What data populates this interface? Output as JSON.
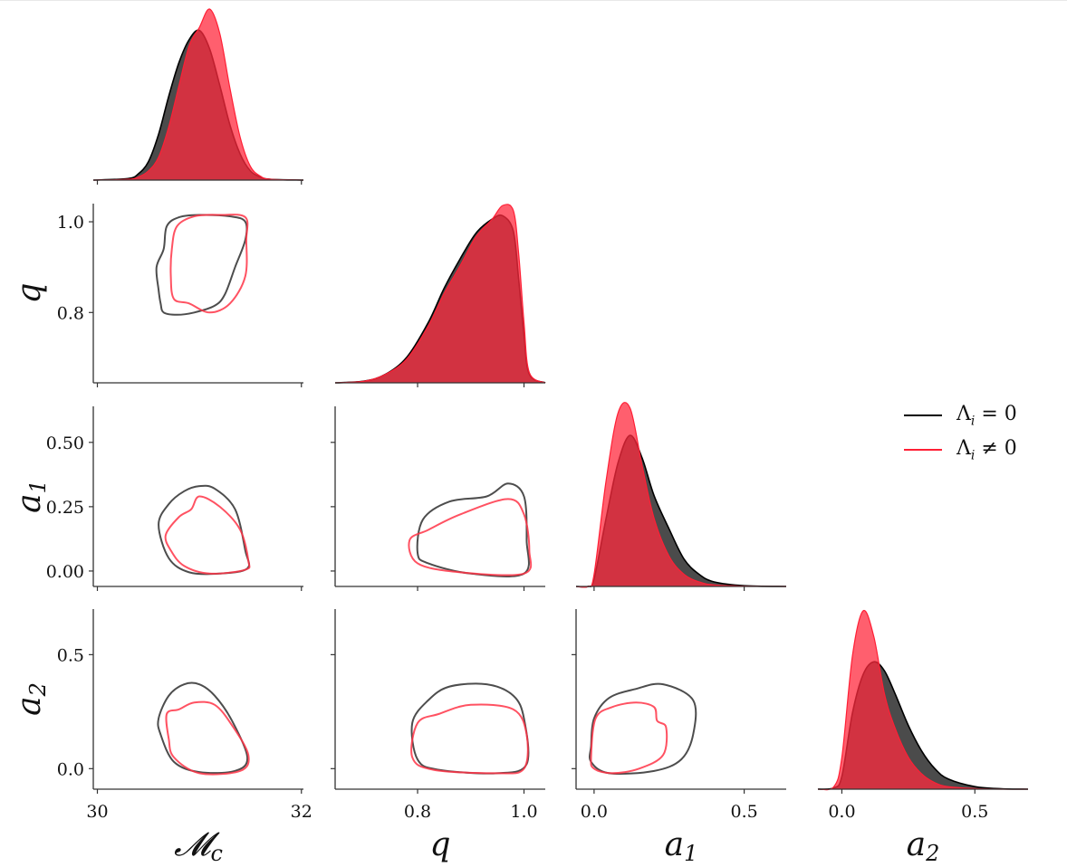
{
  "chart_data": {
    "type": "corner",
    "title": "",
    "parameters": [
      {
        "key": "Mc",
        "label": "𝓜c",
        "label_main": "𝓜",
        "label_sub": "c",
        "range": [
          29.96,
          32.02
        ],
        "ticks": [
          30,
          32
        ],
        "tick_labels": [
          "30",
          "32"
        ]
      },
      {
        "key": "q",
        "label": "q",
        "label_main": "q",
        "label_sub": "",
        "range": [
          0.645,
          1.04
        ],
        "ticks": [
          0.8,
          1.0
        ],
        "tick_labels": [
          "0.8",
          "1.0"
        ]
      },
      {
        "key": "a1",
        "label": "a1",
        "label_main": "a",
        "label_sub": "1",
        "range": [
          -0.06,
          0.64
        ],
        "ticks": [
          0.0,
          0.25,
          0.5
        ],
        "tick_labels": [
          "0.00",
          "0.25",
          "0.50"
        ],
        "x_tick_labels": [
          "0.0",
          "0.5"
        ],
        "x_ticks": [
          0.0,
          0.5
        ]
      },
      {
        "key": "a2",
        "label": "a2",
        "label_main": "a",
        "label_sub": "2",
        "range": [
          -0.09,
          0.7
        ],
        "ticks": [
          0.0,
          0.5
        ],
        "tick_labels": [
          "0.0",
          "0.5"
        ]
      }
    ],
    "series": [
      {
        "name": "Λi = 0",
        "color": "#000000",
        "fill": "#2b2b2b",
        "fill_opacity": 0.85
      },
      {
        "name": "Λi ≠ 0",
        "color": "#ff1f35",
        "fill": "#ff2a3d",
        "fill_opacity": 0.75
      }
    ],
    "marginals": {
      "Mc": {
        "x": [
          29.96,
          30.3,
          30.4,
          30.5,
          30.6,
          30.7,
          30.8,
          30.9,
          31.0,
          31.1,
          31.2,
          31.3,
          31.4,
          31.5,
          31.6,
          31.7,
          32.02
        ],
        "black": [
          0,
          0.01,
          0.04,
          0.12,
          0.3,
          0.55,
          0.77,
          0.92,
          0.98,
          0.86,
          0.62,
          0.36,
          0.17,
          0.06,
          0.02,
          0.005,
          0
        ],
        "red": [
          0,
          0.005,
          0.02,
          0.06,
          0.15,
          0.35,
          0.62,
          0.88,
          1.0,
          1.12,
          0.96,
          0.6,
          0.28,
          0.09,
          0.025,
          0.005,
          0
        ]
      },
      "q": {
        "x": [
          0.645,
          0.7,
          0.74,
          0.78,
          0.82,
          0.85,
          0.88,
          0.91,
          0.94,
          0.96,
          0.98,
          0.99,
          1.0,
          1.01,
          1.04
        ],
        "black": [
          0,
          0.01,
          0.05,
          0.15,
          0.35,
          0.55,
          0.72,
          0.87,
          0.95,
          0.97,
          0.88,
          0.6,
          0.28,
          0.05,
          0
        ],
        "red": [
          0,
          0.01,
          0.05,
          0.14,
          0.33,
          0.52,
          0.68,
          0.85,
          0.95,
          1.03,
          1.0,
          0.75,
          0.35,
          0.06,
          0
        ]
      },
      "a1": {
        "x": [
          -0.06,
          -0.02,
          0.0,
          0.04,
          0.08,
          0.12,
          0.16,
          0.2,
          0.25,
          0.3,
          0.35,
          0.4,
          0.5,
          0.64
        ],
        "black": [
          0,
          0,
          0.05,
          0.45,
          0.82,
          1.0,
          0.85,
          0.6,
          0.38,
          0.18,
          0.08,
          0.03,
          0.005,
          0
        ],
        "red": [
          0,
          0,
          0.08,
          0.7,
          1.15,
          1.18,
          0.8,
          0.45,
          0.2,
          0.08,
          0.03,
          0.01,
          0.002,
          0
        ]
      },
      "a2": {
        "x": [
          -0.09,
          -0.03,
          0.0,
          0.04,
          0.08,
          0.12,
          0.16,
          0.2,
          0.25,
          0.3,
          0.35,
          0.4,
          0.5,
          0.6,
          0.7
        ],
        "black": [
          0,
          0.01,
          0.1,
          0.6,
          0.9,
          1.0,
          0.93,
          0.75,
          0.5,
          0.3,
          0.16,
          0.08,
          0.02,
          0.003,
          0
        ],
        "red": [
          0,
          0.02,
          0.25,
          1.05,
          1.4,
          1.2,
          0.75,
          0.48,
          0.25,
          0.12,
          0.05,
          0.02,
          0.005,
          0,
          0
        ]
      }
    },
    "contours": {
      "q_vs_Mc": {
        "black": [
          [
            30.65,
            0.8
          ],
          [
            30.78,
            0.795
          ],
          [
            30.95,
            0.8
          ],
          [
            31.15,
            0.815
          ],
          [
            31.25,
            0.84
          ],
          [
            31.35,
            0.9
          ],
          [
            31.45,
            0.96
          ],
          [
            31.45,
            1.0
          ],
          [
            31.3,
            1.012
          ],
          [
            31.0,
            1.015
          ],
          [
            30.8,
            1.01
          ],
          [
            30.68,
            0.99
          ],
          [
            30.65,
            0.94
          ],
          [
            30.58,
            0.9
          ],
          [
            30.6,
            0.85
          ],
          [
            30.62,
            0.82
          ]
        ],
        "red": [
          [
            30.75,
            0.83
          ],
          [
            30.9,
            0.82
          ],
          [
            31.1,
            0.8
          ],
          [
            31.3,
            0.82
          ],
          [
            31.45,
            0.88
          ],
          [
            31.46,
            0.96
          ],
          [
            31.45,
            1.01
          ],
          [
            31.2,
            1.015
          ],
          [
            30.95,
            1.012
          ],
          [
            30.78,
            0.99
          ],
          [
            30.73,
            0.94
          ],
          [
            30.72,
            0.88
          ]
        ]
      },
      "a1_vs_Mc": {
        "black": [
          [
            30.6,
            0.18
          ],
          [
            30.7,
            0.26
          ],
          [
            30.85,
            0.31
          ],
          [
            31.0,
            0.33
          ],
          [
            31.15,
            0.32
          ],
          [
            31.35,
            0.24
          ],
          [
            31.45,
            0.08
          ],
          [
            31.47,
            0.01
          ],
          [
            31.2,
            -0.01
          ],
          [
            30.9,
            -0.005
          ],
          [
            30.7,
            0.05
          ]
        ],
        "red": [
          [
            30.67,
            0.14
          ],
          [
            30.8,
            0.21
          ],
          [
            30.92,
            0.24
          ],
          [
            31.0,
            0.29
          ],
          [
            31.2,
            0.25
          ],
          [
            31.4,
            0.16
          ],
          [
            31.48,
            0.04
          ],
          [
            31.45,
            0.005
          ],
          [
            31.1,
            -0.01
          ],
          [
            30.85,
            0.02
          ],
          [
            30.72,
            0.08
          ]
        ]
      },
      "a1_vs_q": {
        "black": [
          [
            0.8,
            0.07
          ],
          [
            0.81,
            0.2
          ],
          [
            0.86,
            0.27
          ],
          [
            0.93,
            0.29
          ],
          [
            0.97,
            0.34
          ],
          [
            1.0,
            0.29
          ],
          [
            1.005,
            0.12
          ],
          [
            1.0,
            -0.01
          ],
          [
            0.9,
            -0.01
          ],
          [
            0.82,
            0.03
          ]
        ],
        "red": [
          [
            0.785,
            0.12
          ],
          [
            0.82,
            0.16
          ],
          [
            0.88,
            0.22
          ],
          [
            0.97,
            0.28
          ],
          [
            1.0,
            0.22
          ],
          [
            1.01,
            0.08
          ],
          [
            1.0,
            -0.01
          ],
          [
            0.88,
            -0.005
          ],
          [
            0.8,
            0.03
          ]
        ]
      },
      "a2_vs_Mc": {
        "black": [
          [
            30.6,
            0.22
          ],
          [
            30.7,
            0.32
          ],
          [
            30.85,
            0.37
          ],
          [
            31.0,
            0.37
          ],
          [
            31.15,
            0.32
          ],
          [
            31.32,
            0.21
          ],
          [
            31.47,
            0.05
          ],
          [
            31.35,
            -0.01
          ],
          [
            31.0,
            -0.015
          ],
          [
            30.75,
            0.03
          ],
          [
            30.62,
            0.15
          ]
        ],
        "red": [
          [
            30.68,
            0.24
          ],
          [
            30.8,
            0.26
          ],
          [
            30.95,
            0.29
          ],
          [
            31.15,
            0.28
          ],
          [
            31.32,
            0.19
          ],
          [
            31.48,
            0.06
          ],
          [
            31.4,
            -0.01
          ],
          [
            31.0,
            -0.02
          ],
          [
            30.75,
            0.05
          ],
          [
            30.7,
            0.13
          ]
        ]
      },
      "a2_vs_q": {
        "black": [
          [
            0.79,
            0.2
          ],
          [
            0.82,
            0.3
          ],
          [
            0.86,
            0.36
          ],
          [
            0.93,
            0.37
          ],
          [
            0.98,
            0.32
          ],
          [
            1.0,
            0.22
          ],
          [
            1.005,
            0.02
          ],
          [
            0.95,
            -0.02
          ],
          [
            0.84,
            -0.005
          ],
          [
            0.8,
            0.04
          ]
        ],
        "red": [
          [
            0.79,
            0.05
          ],
          [
            0.8,
            0.2
          ],
          [
            0.84,
            0.24
          ],
          [
            0.9,
            0.28
          ],
          [
            0.98,
            0.26
          ],
          [
            1.005,
            0.15
          ],
          [
            1.0,
            0.0
          ],
          [
            0.95,
            -0.02
          ],
          [
            0.83,
            -0.005
          ]
        ]
      },
      "a2_vs_a1": {
        "black": [
          [
            -0.01,
            0.1
          ],
          [
            0.0,
            0.22
          ],
          [
            0.05,
            0.31
          ],
          [
            0.14,
            0.35
          ],
          [
            0.23,
            0.37
          ],
          [
            0.33,
            0.3
          ],
          [
            0.33,
            0.15
          ],
          [
            0.29,
            0.04
          ],
          [
            0.2,
            -0.01
          ],
          [
            0.05,
            -0.02
          ],
          [
            -0.01,
            0.03
          ]
        ],
        "red": [
          [
            -0.01,
            0.05
          ],
          [
            0.005,
            0.22
          ],
          [
            0.06,
            0.27
          ],
          [
            0.14,
            0.29
          ],
          [
            0.2,
            0.27
          ],
          [
            0.21,
            0.21
          ],
          [
            0.24,
            0.18
          ],
          [
            0.23,
            0.06
          ],
          [
            0.15,
            0.0
          ],
          [
            0.06,
            -0.02
          ],
          [
            0.0,
            0.0
          ]
        ]
      }
    },
    "legend": {
      "position": "right",
      "entries": [
        "Λi = 0",
        "Λi ≠ 0"
      ]
    },
    "grid": false
  },
  "legend": {
    "item0_main": "Λ",
    "item0_sub": "i",
    "item0_rest": " = 0",
    "item1_main": "Λ",
    "item1_sub": "i",
    "item1_rest": " ≠ 0"
  },
  "axis_labels": {
    "x0_main": "𝓜",
    "x0_sub": "c",
    "x1_main": "q",
    "x2_main": "a",
    "x2_sub": "1",
    "x3_main": "a",
    "x3_sub": "2",
    "y1_main": "q",
    "y2_main": "a",
    "y2_sub": "1",
    "y3_main": "a",
    "y3_sub": "2"
  }
}
